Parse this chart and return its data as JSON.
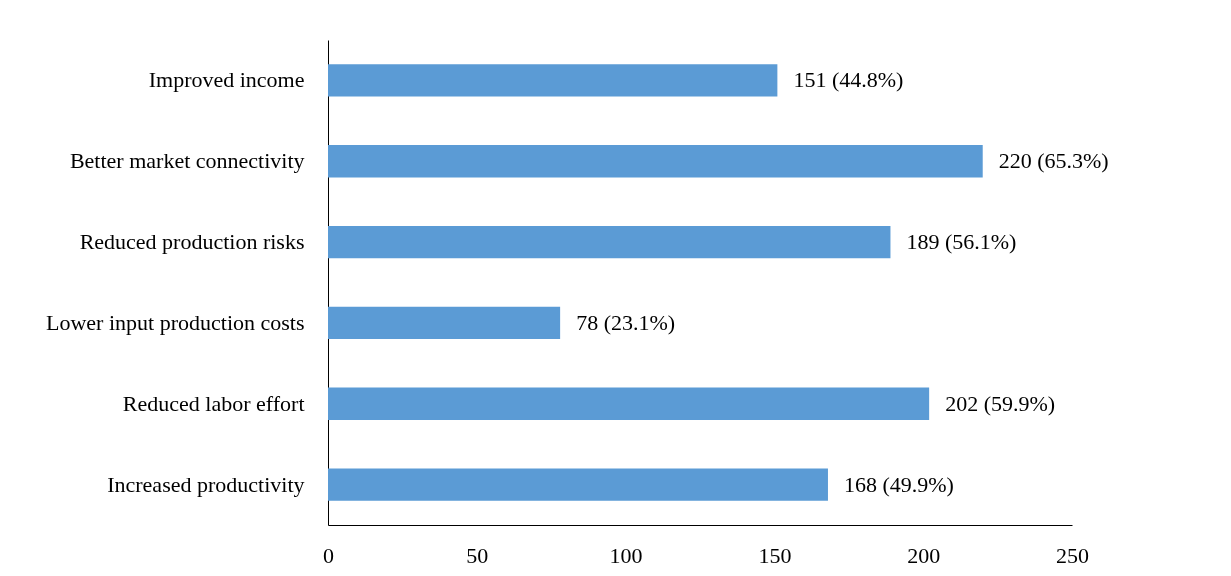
{
  "chart_data": {
    "type": "bar",
    "orientation": "horizontal",
    "categories": [
      "Improved income",
      "Better market connectivity",
      "Reduced production risks",
      "Lower input production costs",
      "Reduced labor effort",
      "Increased productivity"
    ],
    "values": [
      151,
      220,
      189,
      78,
      202,
      168
    ],
    "value_labels": [
      "151 (44.8%)",
      "220 (65.3%)",
      "189 (56.1%)",
      "78 (23.1%)",
      "202 (59.9%)",
      "168 (49.9%)"
    ],
    "color": "#5b9bd5",
    "xlim": [
      0,
      250
    ],
    "xticks": [
      0,
      50,
      100,
      150,
      200,
      250
    ],
    "grid": false
  }
}
